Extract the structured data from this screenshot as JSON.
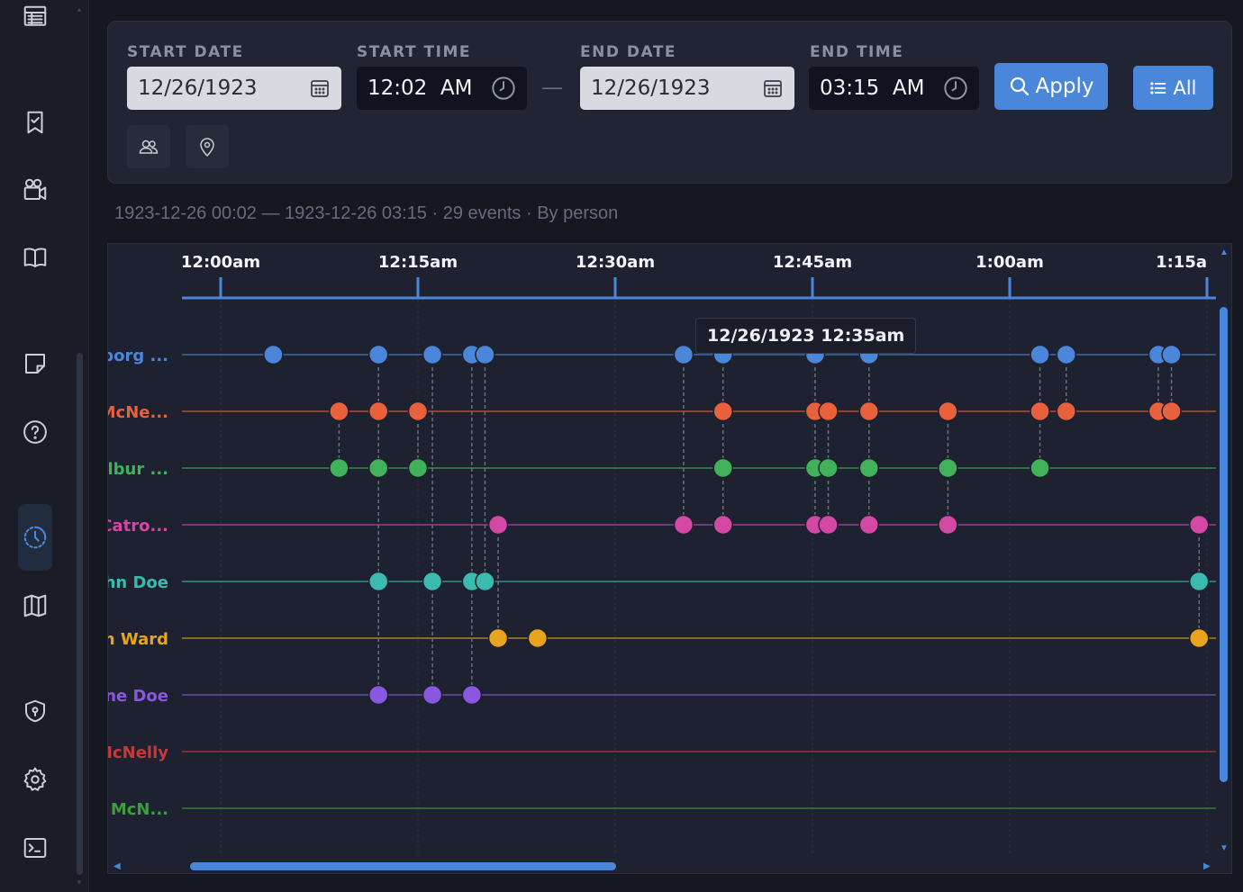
{
  "sidebar": {
    "icons": [
      {
        "name": "table-icon",
        "active": false
      },
      {
        "name": "bookmark-check-icon",
        "active": false
      },
      {
        "name": "camera-icon",
        "active": false
      },
      {
        "name": "book-icon",
        "active": false
      },
      {
        "name": "sticky-note-icon",
        "active": false
      },
      {
        "name": "help-icon",
        "active": false
      },
      {
        "name": "timeline-icon",
        "active": true
      },
      {
        "name": "map-icon",
        "active": false
      },
      {
        "name": "shield-icon",
        "active": false
      },
      {
        "name": "gear-icon",
        "active": false
      },
      {
        "name": "terminal-icon",
        "active": false
      }
    ]
  },
  "filters": {
    "start_date_label": "START DATE",
    "start_date": "12/26/1923",
    "start_time_label": "START TIME",
    "start_time": "12:02  AM",
    "separator": "—",
    "end_date_label": "END DATE",
    "end_date": "12/26/1923",
    "end_time_label": "END TIME",
    "end_time": "03:15  AM",
    "apply_label": "Apply",
    "all_label": "All"
  },
  "summary": "1923-12-26 00:02 — 1923-12-26 03:15 · 29 events · By person",
  "tooltip": "12/26/1923 12:35am",
  "chart_data": {
    "type": "scatter",
    "x_ticks": [
      "12:00am",
      "12:15am",
      "12:30am",
      "12:45am",
      "1:00am",
      "1:15a"
    ],
    "x_tick_minutes": [
      0,
      15,
      30,
      45,
      60,
      75
    ],
    "lanes": [
      {
        "label": "lborg ...",
        "color": "#4a86d9"
      },
      {
        "label": "McNe...",
        "color": "#e8603c"
      },
      {
        "label": "Vilbur ...",
        "color": "#3fb25a"
      },
      {
        "label": "Catro...",
        "color": "#d447a5"
      },
      {
        "label": "ohn Doe",
        "color": "#3bbab0"
      },
      {
        "label": "m Ward",
        "color": "#e8a41f"
      },
      {
        "label": "ane Doe",
        "color": "#8a57e0"
      },
      {
        "label": "McNelly",
        "color": "#c43a3a"
      },
      {
        "label": "e McN...",
        "color": "#3d9d3f"
      }
    ],
    "events": [
      {
        "t": 4.0,
        "lanes": [
          0
        ]
      },
      {
        "t": 9.0,
        "lanes": [
          1,
          2
        ]
      },
      {
        "t": 12.0,
        "lanes": [
          0,
          1,
          2,
          4,
          6
        ]
      },
      {
        "t": 15.0,
        "lanes": [
          1,
          2
        ]
      },
      {
        "t": 16.1,
        "lanes": [
          0,
          4,
          6
        ]
      },
      {
        "t": 19.1,
        "lanes": [
          0,
          4,
          6
        ]
      },
      {
        "t": 20.1,
        "lanes": [
          0,
          4
        ]
      },
      {
        "t": 21.1,
        "lanes": [
          3,
          5
        ]
      },
      {
        "t": 24.1,
        "lanes": [
          5
        ]
      },
      {
        "t": 35.2,
        "lanes": [
          0,
          3
        ]
      },
      {
        "t": 38.2,
        "lanes": [
          0,
          1,
          2,
          3
        ]
      },
      {
        "t": 45.2,
        "lanes": [
          0,
          1,
          2,
          3
        ]
      },
      {
        "t": 46.2,
        "lanes": [
          1,
          2,
          3
        ]
      },
      {
        "t": 49.3,
        "lanes": [
          0,
          1,
          2,
          3
        ]
      },
      {
        "t": 55.3,
        "lanes": [
          1,
          2,
          3
        ]
      },
      {
        "t": 62.3,
        "lanes": [
          0,
          1,
          2
        ]
      },
      {
        "t": 64.3,
        "lanes": [
          0,
          1
        ]
      },
      {
        "t": 71.3,
        "lanes": [
          0,
          1
        ]
      },
      {
        "t": 72.3,
        "lanes": [
          0,
          1
        ]
      },
      {
        "t": 74.4,
        "lanes": [
          3,
          4,
          5
        ]
      }
    ]
  }
}
